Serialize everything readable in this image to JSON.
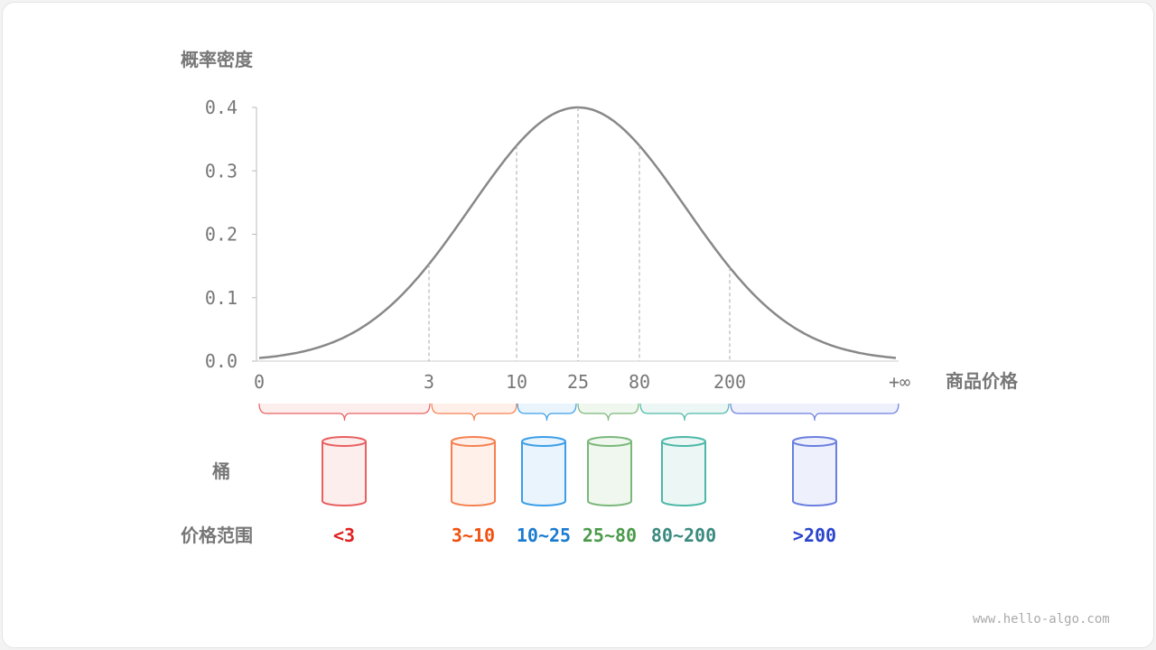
{
  "y_axis_title": "概率密度",
  "x_axis_title": "商品价格",
  "y_ticks": [
    "0.0",
    "0.1",
    "0.2",
    "0.3",
    "0.4"
  ],
  "x_ticks": [
    "0",
    "3",
    "10",
    "25",
    "80",
    "200",
    "+∞"
  ],
  "row_labels": {
    "bucket": "桶",
    "range": "价格范围"
  },
  "buckets": [
    {
      "range": "<3",
      "stroke": "#e86060",
      "fill": "#fdeeee",
      "text": "#e02020"
    },
    {
      "range": "3~10",
      "stroke": "#f58050",
      "fill": "#fff1ea",
      "text": "#f05010"
    },
    {
      "range": "10~25",
      "stroke": "#3c9ee8",
      "fill": "#e9f4fd",
      "text": "#1a7bd0"
    },
    {
      "range": "25~80",
      "stroke": "#7ab87a",
      "fill": "#eff7ee",
      "text": "#4a9a4a"
    },
    {
      "range": "80~200",
      "stroke": "#4db8a8",
      "fill": "#ecf7f5",
      "text": "#3a8a80"
    },
    {
      "range": ">200",
      "stroke": "#6a7fe0",
      "fill": "#eef0fb",
      "text": "#2a45cc"
    }
  ],
  "watermark": "www.hello-algo.com"
}
